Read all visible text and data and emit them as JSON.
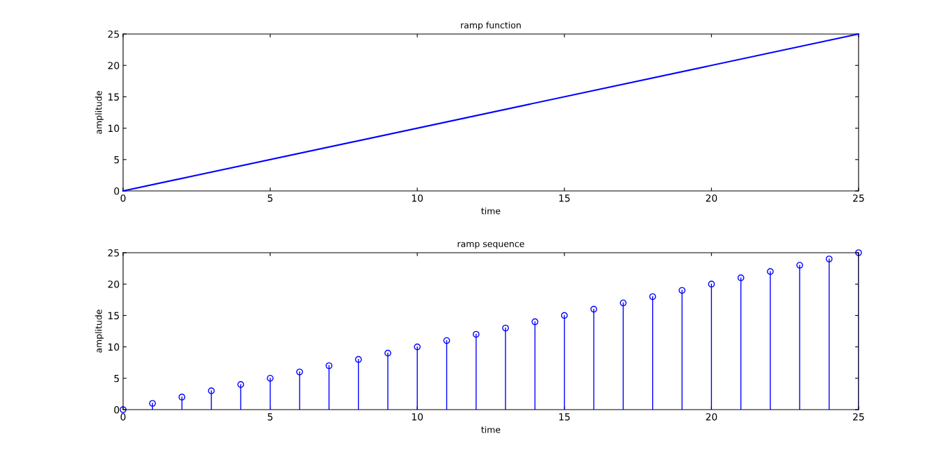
{
  "chart_data": [
    {
      "type": "line",
      "title": "ramp function",
      "xlabel": "time",
      "ylabel": "amplitude",
      "x": [
        0,
        25
      ],
      "series": [
        {
          "color": "#0000ff",
          "values": [
            0,
            25
          ]
        }
      ],
      "xlim": [
        0,
        25
      ],
      "ylim": [
        0,
        25
      ],
      "xticks": [
        0,
        5,
        10,
        15,
        20,
        25
      ],
      "yticks": [
        0,
        5,
        10,
        15,
        20,
        25
      ],
      "grid": false,
      "marker": "none",
      "line_style": "solid"
    },
    {
      "type": "lollipop",
      "title": "ramp sequence",
      "xlabel": "time",
      "ylabel": "amplitude",
      "x": [
        0,
        1,
        2,
        3,
        4,
        5,
        6,
        7,
        8,
        9,
        10,
        11,
        12,
        13,
        14,
        15,
        16,
        17,
        18,
        19,
        20,
        21,
        22,
        23,
        24,
        25
      ],
      "series": [
        {
          "color": "#0000ff",
          "values": [
            0,
            1,
            2,
            3,
            4,
            5,
            6,
            7,
            8,
            9,
            10,
            11,
            12,
            13,
            14,
            15,
            16,
            17,
            18,
            19,
            20,
            21,
            22,
            23,
            24,
            25
          ]
        }
      ],
      "xlim": [
        0,
        25
      ],
      "ylim": [
        0,
        25
      ],
      "xticks": [
        0,
        5,
        10,
        15,
        20,
        25
      ],
      "yticks": [
        0,
        5,
        10,
        15,
        20,
        25
      ],
      "grid": false,
      "marker": "circle",
      "line_style": "solid"
    }
  ]
}
